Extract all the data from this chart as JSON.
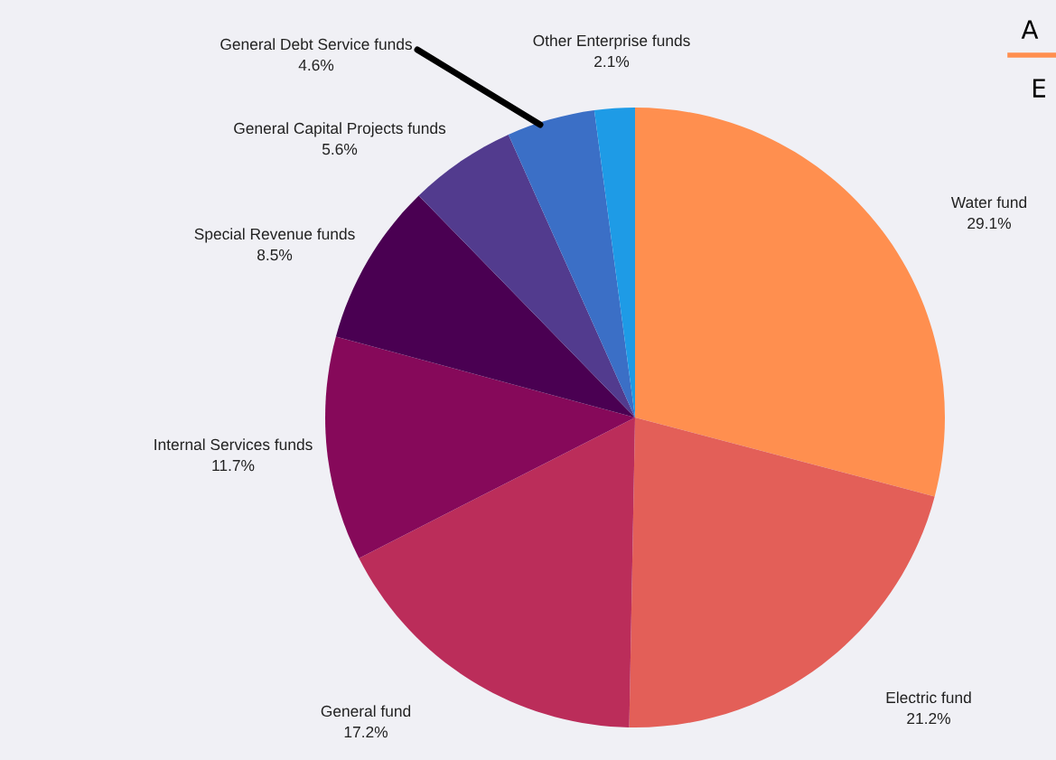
{
  "chart_data": {
    "type": "pie",
    "categories": [
      "Water fund",
      "Electric fund",
      "General fund",
      "Internal Services funds",
      "Special Revenue funds",
      "General Capital Projects funds",
      "General Debt Service funds",
      "Other Enterprise funds"
    ],
    "values": [
      29.1,
      21.2,
      17.2,
      11.7,
      8.5,
      5.6,
      4.6,
      2.1
    ],
    "value_labels": [
      "29.1%",
      "21.2%",
      "17.2%",
      "11.7%",
      "8.5%",
      "5.6%",
      "4.6%",
      "2.1%"
    ],
    "colors": [
      "#ff8f4f",
      "#e35f58",
      "#bb2d5a",
      "#86095a",
      "#4a0052",
      "#523b8e",
      "#3b6fc6",
      "#1e9be6"
    ],
    "annotations": [
      "A",
      "E"
    ],
    "legend": false
  }
}
